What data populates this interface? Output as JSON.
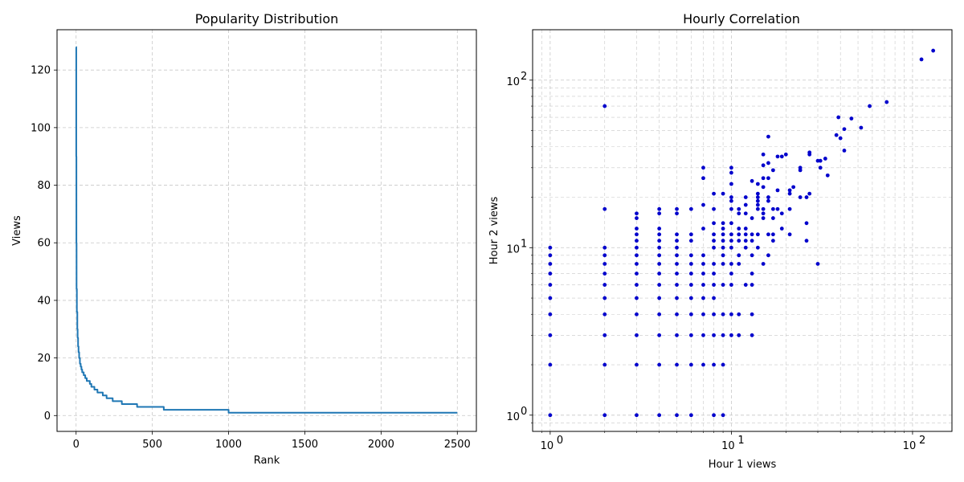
{
  "chart_data": [
    {
      "type": "line",
      "title": "Popularity Distribution",
      "xlabel": "Rank",
      "ylabel": "Views",
      "xlim": [
        -125,
        2625
      ],
      "ylim": [
        -5.5,
        134
      ],
      "xticks": [
        0,
        500,
        1000,
        1500,
        2000,
        2500
      ],
      "yticks": [
        0,
        20,
        40,
        60,
        80,
        100,
        120
      ],
      "grid": true,
      "color": "#1f77b4",
      "series": [
        {
          "x": [
            0,
            1,
            2,
            3,
            5,
            8,
            10,
            13,
            16,
            20,
            25,
            30,
            35,
            40,
            50,
            60,
            70,
            80,
            90,
            100,
            110,
            120,
            130,
            140,
            155,
            175,
            200,
            220,
            240,
            270,
            300,
            330,
            360,
            400,
            450,
            500,
            575,
            650,
            700,
            800,
            900,
            1000,
            1200,
            1500,
            2000,
            2500
          ],
          "y": [
            128,
            90,
            60,
            44,
            36,
            30,
            27,
            24,
            22,
            20,
            18,
            17,
            16,
            15,
            14,
            13,
            12,
            12,
            11,
            10,
            10,
            9,
            9,
            8,
            8,
            7,
            6,
            6,
            5,
            5,
            4,
            4,
            4,
            3,
            3,
            3,
            2,
            2,
            2,
            2,
            2,
            1,
            1,
            1,
            1,
            1
          ]
        }
      ]
    },
    {
      "type": "scatter",
      "title": "Hourly Correlation",
      "xlabel": "Hour 1 views",
      "ylabel": "Hour 2 views",
      "xscale": "log",
      "yscale": "log",
      "xlim": [
        0.8,
        165
      ],
      "ylim": [
        0.8,
        200
      ],
      "xticks": [
        1,
        10,
        100
      ],
      "yticks": [
        1,
        10,
        100
      ],
      "xtick_labels": [
        "10",
        "10",
        "10"
      ],
      "xtick_exponents": [
        "0",
        "1",
        "2"
      ],
      "ytick_labels": [
        "10",
        "10",
        "10"
      ],
      "ytick_exponents": [
        "0",
        "1",
        "2"
      ],
      "grid": true,
      "color": "#0000cc",
      "points": [
        [
          1,
          1
        ],
        [
          1,
          2
        ],
        [
          1,
          3
        ],
        [
          1,
          4
        ],
        [
          1,
          5
        ],
        [
          1,
          6
        ],
        [
          1,
          7
        ],
        [
          1,
          8
        ],
        [
          1,
          9
        ],
        [
          1,
          10
        ],
        [
          2,
          1
        ],
        [
          2,
          2
        ],
        [
          2,
          3
        ],
        [
          2,
          4
        ],
        [
          2,
          5
        ],
        [
          2,
          6
        ],
        [
          2,
          7
        ],
        [
          2,
          8
        ],
        [
          2,
          9
        ],
        [
          2,
          10
        ],
        [
          2,
          17
        ],
        [
          2,
          70
        ],
        [
          3,
          1
        ],
        [
          3,
          2
        ],
        [
          3,
          3
        ],
        [
          3,
          4
        ],
        [
          3,
          5
        ],
        [
          3,
          6
        ],
        [
          3,
          7
        ],
        [
          3,
          8
        ],
        [
          3,
          9
        ],
        [
          3,
          10
        ],
        [
          3,
          11
        ],
        [
          3,
          12
        ],
        [
          3,
          13
        ],
        [
          3,
          15
        ],
        [
          3,
          16
        ],
        [
          4,
          1
        ],
        [
          4,
          2
        ],
        [
          4,
          3
        ],
        [
          4,
          4
        ],
        [
          4,
          5
        ],
        [
          4,
          6
        ],
        [
          4,
          7
        ],
        [
          4,
          8
        ],
        [
          4,
          9
        ],
        [
          4,
          10
        ],
        [
          4,
          11
        ],
        [
          4,
          12
        ],
        [
          4,
          13
        ],
        [
          4,
          16
        ],
        [
          4,
          17
        ],
        [
          5,
          1
        ],
        [
          5,
          2
        ],
        [
          5,
          3
        ],
        [
          5,
          4
        ],
        [
          5,
          5
        ],
        [
          5,
          6
        ],
        [
          5,
          7
        ],
        [
          5,
          8
        ],
        [
          5,
          9
        ],
        [
          5,
          10
        ],
        [
          5,
          11
        ],
        [
          5,
          12
        ],
        [
          5,
          16
        ],
        [
          5,
          17
        ],
        [
          6,
          1
        ],
        [
          6,
          2
        ],
        [
          6,
          3
        ],
        [
          6,
          4
        ],
        [
          6,
          5
        ],
        [
          6,
          6
        ],
        [
          6,
          7
        ],
        [
          6,
          8
        ],
        [
          6,
          9
        ],
        [
          6,
          11
        ],
        [
          6,
          12
        ],
        [
          6,
          17
        ],
        [
          7,
          2
        ],
        [
          7,
          3
        ],
        [
          7,
          4
        ],
        [
          7,
          5
        ],
        [
          7,
          6
        ],
        [
          7,
          7
        ],
        [
          7,
          8
        ],
        [
          7,
          9
        ],
        [
          7,
          13
        ],
        [
          7,
          18
        ],
        [
          7,
          26
        ],
        [
          7,
          30
        ],
        [
          8,
          1
        ],
        [
          8,
          2
        ],
        [
          8,
          3
        ],
        [
          8,
          4
        ],
        [
          8,
          5
        ],
        [
          8,
          6
        ],
        [
          8,
          7
        ],
        [
          8,
          8
        ],
        [
          8,
          10
        ],
        [
          8,
          11
        ],
        [
          8,
          12
        ],
        [
          8,
          14
        ],
        [
          8,
          17
        ],
        [
          8,
          21
        ],
        [
          9,
          1
        ],
        [
          9,
          2
        ],
        [
          9,
          3
        ],
        [
          9,
          4
        ],
        [
          9,
          6
        ],
        [
          9,
          8
        ],
        [
          9,
          9
        ],
        [
          9,
          10
        ],
        [
          9,
          11
        ],
        [
          9,
          12
        ],
        [
          9,
          13
        ],
        [
          9,
          14
        ],
        [
          9,
          21
        ],
        [
          10,
          3
        ],
        [
          10,
          4
        ],
        [
          10,
          6
        ],
        [
          10,
          7
        ],
        [
          10,
          8
        ],
        [
          10,
          10
        ],
        [
          10,
          11
        ],
        [
          10,
          12
        ],
        [
          10,
          14
        ],
        [
          10,
          17
        ],
        [
          10,
          19
        ],
        [
          10,
          20
        ],
        [
          10,
          24
        ],
        [
          10,
          28
        ],
        [
          10,
          30
        ],
        [
          11,
          3
        ],
        [
          11,
          4
        ],
        [
          11,
          8
        ],
        [
          11,
          9
        ],
        [
          11,
          11
        ],
        [
          11,
          12
        ],
        [
          11,
          13
        ],
        [
          11,
          16
        ],
        [
          11,
          17
        ],
        [
          12,
          6
        ],
        [
          12,
          10
        ],
        [
          12,
          11
        ],
        [
          12,
          12
        ],
        [
          12,
          13
        ],
        [
          12,
          16
        ],
        [
          12,
          18
        ],
        [
          12,
          20
        ],
        [
          13,
          3
        ],
        [
          13,
          4
        ],
        [
          13,
          6
        ],
        [
          13,
          7
        ],
        [
          13,
          9
        ],
        [
          13,
          11
        ],
        [
          13,
          12
        ],
        [
          13,
          15
        ],
        [
          13,
          25
        ],
        [
          14,
          10
        ],
        [
          14,
          12
        ],
        [
          14,
          17
        ],
        [
          14,
          18
        ],
        [
          14,
          19
        ],
        [
          14,
          20
        ],
        [
          14,
          21
        ],
        [
          14,
          24
        ],
        [
          15,
          8
        ],
        [
          15,
          15
        ],
        [
          15,
          16
        ],
        [
          15,
          17
        ],
        [
          15,
          23
        ],
        [
          15,
          26
        ],
        [
          15,
          31
        ],
        [
          15,
          36
        ],
        [
          16,
          9
        ],
        [
          16,
          12
        ],
        [
          16,
          19
        ],
        [
          16,
          20
        ],
        [
          16,
          26
        ],
        [
          16,
          32
        ],
        [
          16,
          46
        ],
        [
          17,
          11
        ],
        [
          17,
          12
        ],
        [
          17,
          15
        ],
        [
          17,
          17
        ],
        [
          17,
          29
        ],
        [
          18,
          17
        ],
        [
          18,
          22
        ],
        [
          18,
          35
        ],
        [
          19,
          13
        ],
        [
          19,
          16
        ],
        [
          19,
          35
        ],
        [
          20,
          36
        ],
        [
          21,
          12
        ],
        [
          21,
          17
        ],
        [
          21,
          21
        ],
        [
          21,
          22
        ],
        [
          22,
          23
        ],
        [
          24,
          20
        ],
        [
          24,
          29
        ],
        [
          24,
          30
        ],
        [
          26,
          11
        ],
        [
          26,
          14
        ],
        [
          26,
          20
        ],
        [
          27,
          21
        ],
        [
          27,
          36
        ],
        [
          27,
          37
        ],
        [
          30,
          8
        ],
        [
          30,
          33
        ],
        [
          31,
          30
        ],
        [
          31,
          33
        ],
        [
          33,
          34
        ],
        [
          34,
          27
        ],
        [
          38,
          47
        ],
        [
          39,
          60
        ],
        [
          40,
          45
        ],
        [
          42,
          38
        ],
        [
          42,
          51
        ],
        [
          46,
          59
        ],
        [
          52,
          52
        ],
        [
          58,
          70
        ],
        [
          72,
          74
        ],
        [
          112,
          133
        ],
        [
          130,
          150
        ]
      ]
    }
  ]
}
